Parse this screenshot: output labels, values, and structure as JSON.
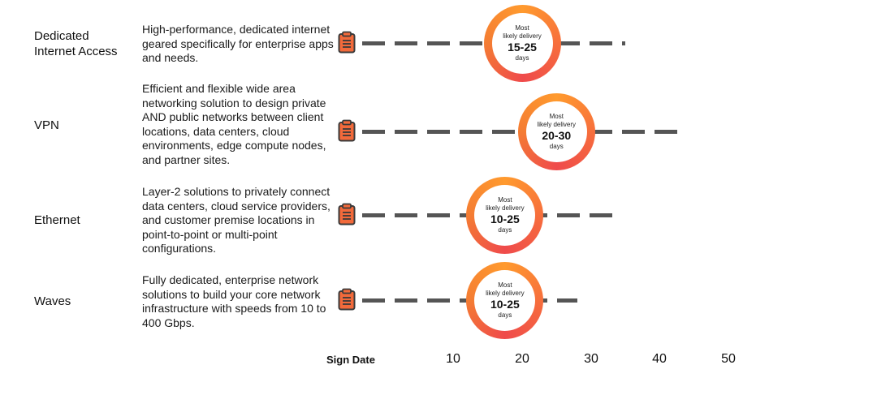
{
  "rows": [
    {
      "name": "Dedicated\nInternet Access",
      "description": "High-performance, dedicated internet geared specifically for enterprise apps and needs.",
      "badge": {
        "line1": "Most",
        "line2": "likely delivery",
        "range": "15-25",
        "unit": "days"
      },
      "range_days": [
        15,
        25
      ],
      "line_end_day": 35
    },
    {
      "name": "VPN",
      "description": "Efficient and flexible wide area networking solution to design private AND public networks between client locations, data centers, cloud environments, edge compute nodes, and partner sites.",
      "badge": {
        "line1": "Most",
        "line2": "likely delivery",
        "range": "20-30",
        "unit": "days"
      },
      "range_days": [
        20,
        30
      ],
      "line_end_day": 44
    },
    {
      "name": "Ethernet",
      "description": "Layer-2 solutions to privately connect data centers, cloud service providers, and customer premise locations in point-to-point or multi-point configurations.",
      "badge": {
        "line1": "Most",
        "line2": "likely delivery",
        "range": "10-25",
        "unit": "days"
      },
      "range_days": [
        10,
        25
      ],
      "line_end_day": 34
    },
    {
      "name": "Waves",
      "description": "Fully dedicated, enterprise network solutions to build your core network infrastructure with speeds from 10 to 400 Gbps.",
      "badge": {
        "line1": "Most",
        "line2": "likely delivery",
        "range": "10-25",
        "unit": "days"
      },
      "range_days": [
        10,
        25
      ],
      "line_end_day": 28
    }
  ],
  "axis": {
    "start_label": "Sign Date",
    "ticks": [
      "10",
      "20",
      "30",
      "40",
      "50"
    ]
  },
  "colors": {
    "ring_start": "#ef4b4b",
    "ring_end": "#ff9a2e",
    "timeline": "#555555",
    "clipboard": "#f26a3b"
  },
  "icons": {
    "sign_date": "clipboard-icon"
  }
}
